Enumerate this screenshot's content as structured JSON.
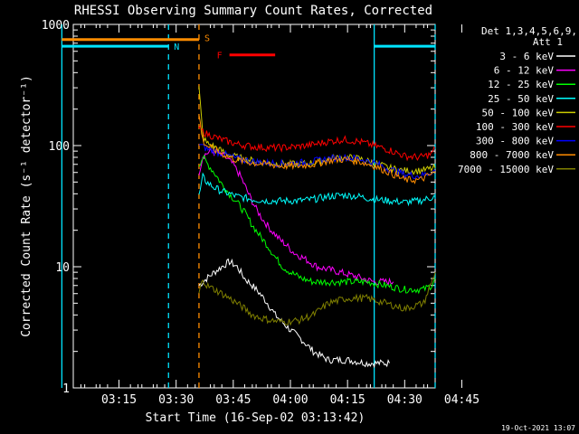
{
  "chart_data": {
    "type": "line",
    "title": "RHESSI Observing Summary Count Rates, Corrected",
    "xlabel": "Start Time (16-Sep-02 03:13:42)",
    "ylabel": "Corrected Count Rate (s⁻¹ detector⁻¹)",
    "yscale": "log",
    "ylim": [
      1,
      1000
    ],
    "xlim_minutes": [
      3.0,
      98.0
    ],
    "x_tick_labels": [
      "03:15",
      "03:30",
      "03:45",
      "04:00",
      "04:15",
      "04:30",
      "04:45"
    ],
    "x_tick_minutes": [
      15,
      30,
      45,
      60,
      75,
      90,
      105
    ],
    "y_tick_labels": [
      "1",
      "10",
      "100",
      "1000"
    ],
    "y_tick_values": [
      1,
      10,
      100,
      1000
    ],
    "legend": {
      "header_line1": "Det 1,3,4,5,6,9,",
      "header_line2": "Att 1",
      "placement": "right"
    },
    "footer_date": "19-Oct-2021 13:07",
    "flags": [
      {
        "label": "S",
        "color": "#ff8c00",
        "y": 750,
        "segments": [
          [
            0,
            36
          ]
        ]
      },
      {
        "label": "N",
        "color": "#00e5ff",
        "y": 660,
        "segments": [
          [
            0,
            28
          ],
          [
            82,
            98
          ]
        ]
      },
      {
        "label": "F",
        "color": "#ff0000",
        "y": 560,
        "segments": [
          [
            44,
            56
          ]
        ]
      }
    ],
    "vlines": [
      {
        "minute": 0,
        "color": "#00e5ff",
        "style": "solid"
      },
      {
        "minute": 28,
        "color": "#00e5ff",
        "style": "dashed"
      },
      {
        "minute": 36,
        "color": "#ff8c00",
        "style": "dashed"
      },
      {
        "minute": 82,
        "color": "#00e5ff",
        "style": "solid"
      },
      {
        "minute": 98,
        "color": "#00e5ff",
        "style": "dashed"
      }
    ],
    "series": [
      {
        "name": "3 - 6 keV",
        "color": "#ffffff",
        "x": [
          36,
          38,
          40,
          42,
          44,
          46,
          48,
          50,
          52,
          54,
          56,
          60,
          63,
          66,
          70,
          75,
          80,
          84,
          86
        ],
        "y": [
          7,
          8,
          9,
          10,
          11,
          10,
          8,
          7,
          6,
          5,
          4,
          3,
          2.5,
          2,
          1.7,
          1.7,
          1.6,
          1.6,
          1.6
        ]
      },
      {
        "name": "6 - 12 keV",
        "color": "#ff00ff",
        "x": [
          36,
          37,
          39,
          41,
          43,
          45,
          47,
          49,
          51,
          53,
          55,
          57,
          59,
          61,
          63,
          65,
          67,
          70,
          73,
          76,
          79,
          82,
          85,
          87
        ],
        "y": [
          60,
          82,
          90,
          86,
          80,
          70,
          55,
          40,
          30,
          24,
          20,
          17,
          15,
          13,
          12,
          11,
          10,
          9.5,
          9,
          8.5,
          8,
          7.5,
          7.5,
          7.5
        ]
      },
      {
        "name": "12 - 25 keV",
        "color": "#00ff00",
        "x": [
          36,
          37,
          38,
          40,
          42,
          44,
          46,
          48,
          50,
          52,
          54,
          56,
          58,
          60,
          63,
          66,
          70,
          75,
          80,
          85,
          90,
          95,
          97,
          98
        ],
        "y": [
          70,
          80,
          72,
          60,
          48,
          40,
          34,
          28,
          22,
          18,
          15,
          12,
          10,
          9,
          8,
          7.5,
          7.5,
          7.5,
          7.5,
          7,
          6.5,
          6.5,
          7,
          8
        ]
      },
      {
        "name": "25 - 50 keV",
        "color": "#00ffff",
        "x": [
          36,
          37,
          38,
          40,
          42,
          44,
          46,
          50,
          54,
          58,
          62,
          66,
          70,
          74,
          78,
          82,
          86,
          90,
          94,
          98
        ],
        "y": [
          38,
          55,
          50,
          45,
          42,
          40,
          38,
          36,
          35,
          35,
          35,
          36,
          38,
          39,
          38,
          36,
          35,
          34,
          35,
          38
        ]
      },
      {
        "name": "50 - 100 keV",
        "color": "#cccc00",
        "x": [
          36,
          37,
          38,
          40,
          42,
          44,
          46,
          50,
          54,
          58,
          62,
          66,
          70,
          74,
          78,
          82,
          86,
          90,
          94,
          98
        ],
        "y": [
          300,
          120,
          105,
          98,
          90,
          84,
          80,
          75,
          72,
          70,
          70,
          72,
          78,
          80,
          78,
          72,
          65,
          62,
          62,
          65
        ]
      },
      {
        "name": "100 - 300 keV",
        "color": "#ff0000",
        "x": [
          36,
          37,
          38,
          40,
          42,
          44,
          46,
          50,
          54,
          58,
          62,
          66,
          70,
          74,
          78,
          82,
          86,
          90,
          94,
          97,
          98
        ],
        "y": [
          140,
          130,
          125,
          118,
          112,
          107,
          103,
          98,
          96,
          96,
          98,
          102,
          108,
          112,
          108,
          100,
          92,
          82,
          80,
          85,
          95
        ]
      },
      {
        "name": "300 - 800 keV",
        "color": "#0000ff",
        "x": [
          36,
          37,
          38,
          40,
          42,
          44,
          46,
          50,
          54,
          58,
          62,
          66,
          70,
          74,
          78,
          82,
          86,
          90,
          94,
          98
        ],
        "y": [
          105,
          98,
          94,
          90,
          86,
          82,
          78,
          74,
          72,
          71,
          72,
          74,
          78,
          80,
          78,
          72,
          64,
          58,
          56,
          62
        ]
      },
      {
        "name": "800 - 7000 keV",
        "color": "#ff8c00",
        "x": [
          36,
          37,
          38,
          40,
          42,
          44,
          46,
          50,
          54,
          58,
          62,
          66,
          70,
          74,
          78,
          82,
          86,
          90,
          94,
          98
        ],
        "y": [
          180,
          110,
          100,
          92,
          86,
          80,
          76,
          72,
          70,
          68,
          68,
          70,
          75,
          77,
          74,
          68,
          60,
          52,
          52,
          60
        ]
      },
      {
        "name": "7000 - 15000 keV",
        "color": "#808000",
        "x": [
          36,
          37,
          38,
          40,
          42,
          44,
          46,
          48,
          50,
          52,
          55,
          58,
          62,
          66,
          70,
          75,
          80,
          85,
          90,
          95,
          98
        ],
        "y": [
          6,
          8,
          7,
          6.5,
          6,
          5.5,
          5,
          4.5,
          4,
          3.8,
          3.6,
          3.5,
          3.6,
          4,
          5,
          5.5,
          5.5,
          5,
          4.5,
          5,
          9
        ]
      }
    ]
  }
}
